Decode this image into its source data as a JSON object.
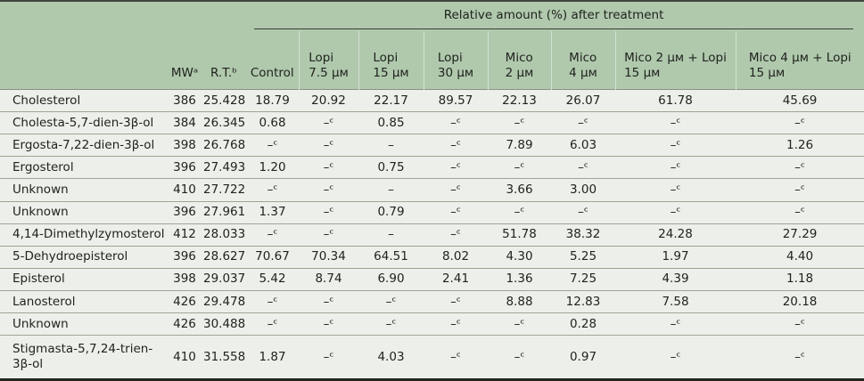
{
  "colors": {
    "header_bg": "#b0c9ad",
    "body_bg": "#edf0ea",
    "row_line": "#9da595",
    "dark_rule": "#2a2d27",
    "text": "#20231e"
  },
  "chart_data": {
    "type": "table",
    "span_header": "Relative amount (%) after treatment",
    "columns": [
      {
        "id": "compound",
        "line1": "",
        "line2": ""
      },
      {
        "id": "mw",
        "line1": "MWᵃ",
        "line2": ""
      },
      {
        "id": "rt",
        "line1": "R.T.ᵇ",
        "line2": ""
      },
      {
        "id": "control",
        "line1": "Control",
        "line2": ""
      },
      {
        "id": "lopi-7-5",
        "line1": "Lopi",
        "line2": "7.5 μᴍ"
      },
      {
        "id": "lopi-15",
        "line1": "Lopi",
        "line2": "15 μᴍ"
      },
      {
        "id": "lopi-30",
        "line1": "Lopi",
        "line2": "30 μᴍ"
      },
      {
        "id": "mico-2",
        "line1": "Mico",
        "line2": "2 μᴍ"
      },
      {
        "id": "mico-4",
        "line1": "Mico",
        "line2": "4 μᴍ"
      },
      {
        "id": "mico-2-lopi-15",
        "line1": "Mico 2 μᴍ + Lopi",
        "line2": "15 μᴍ"
      },
      {
        "id": "mico-4-lopi-15",
        "line1": "Mico 4 μᴍ + Lopi",
        "line2": "15 μᴍ"
      }
    ],
    "rows": [
      {
        "compound": "Cholesterol",
        "mw": "386",
        "rt": "25.428",
        "values": [
          "18.79",
          "20.92",
          "22.17",
          "89.57",
          "22.13",
          "26.07",
          "61.78",
          "45.69"
        ]
      },
      {
        "compound": "Cholesta-5,7-dien-3β-ol",
        "mw": "384",
        "rt": "26.345",
        "values": [
          "0.68",
          "–ᶜ",
          "0.85",
          "–ᶜ",
          "–ᶜ",
          "–ᶜ",
          "–ᶜ",
          "–ᶜ"
        ]
      },
      {
        "compound": "Ergosta-7,22-dien-3β-ol",
        "mw": "398",
        "rt": "26.768",
        "values": [
          "–ᶜ",
          "–ᶜ",
          "–",
          "–ᶜ",
          "7.89",
          "6.03",
          "–ᶜ",
          "1.26"
        ]
      },
      {
        "compound": "Ergosterol",
        "mw": "396",
        "rt": "27.493",
        "values": [
          "1.20",
          "–ᶜ",
          "0.75",
          "–ᶜ",
          "–ᶜ",
          "–ᶜ",
          "–ᶜ",
          "–ᶜ"
        ]
      },
      {
        "compound": "Unknown",
        "mw": "410",
        "rt": "27.722",
        "values": [
          "–ᶜ",
          "–ᶜ",
          "–",
          "–ᶜ",
          "3.66",
          "3.00",
          "–ᶜ",
          "–ᶜ"
        ]
      },
      {
        "compound": "Unknown",
        "mw": "396",
        "rt": "27.961",
        "values": [
          "1.37",
          "–ᶜ",
          "0.79",
          "–ᶜ",
          "–ᶜ",
          "–ᶜ",
          "–ᶜ",
          "–ᶜ"
        ]
      },
      {
        "compound": "4,14-Dimethylzymosterol",
        "mw": "412",
        "rt": "28.033",
        "values": [
          "–ᶜ",
          "–ᶜ",
          "–",
          "–ᶜ",
          "51.78",
          "38.32",
          "24.28",
          "27.29"
        ]
      },
      {
        "compound": "5-Dehydroepisterol",
        "mw": "396",
        "rt": "28.627",
        "values": [
          "70.67",
          "70.34",
          "64.51",
          "8.02",
          "4.30",
          "5.25",
          "1.97",
          "4.40"
        ]
      },
      {
        "compound": "Episterol",
        "mw": "398",
        "rt": "29.037",
        "values": [
          "5.42",
          "8.74",
          "6.90",
          "2.41",
          "1.36",
          "7.25",
          "4.39",
          "1.18"
        ]
      },
      {
        "compound": "Lanosterol",
        "mw": "426",
        "rt": "29.478",
        "values": [
          "–ᶜ",
          "–ᶜ",
          "–ᶜ",
          "–ᶜ",
          "8.88",
          "12.83",
          "7.58",
          "20.18"
        ]
      },
      {
        "compound": "Unknown",
        "mw": "426",
        "rt": "30.488",
        "values": [
          "–ᶜ",
          "–ᶜ",
          "–ᶜ",
          "–ᶜ",
          "–ᶜ",
          "0.28",
          "–ᶜ",
          "–ᶜ"
        ]
      },
      {
        "compound": "Stigmasta-5,7,24-trien-3β-ol",
        "mw": "410",
        "rt": "31.558",
        "values": [
          "1.87",
          "–ᶜ",
          "4.03",
          "–ᶜ",
          "–ᶜ",
          "0.97",
          "–ᶜ",
          "–ᶜ"
        ]
      }
    ]
  }
}
